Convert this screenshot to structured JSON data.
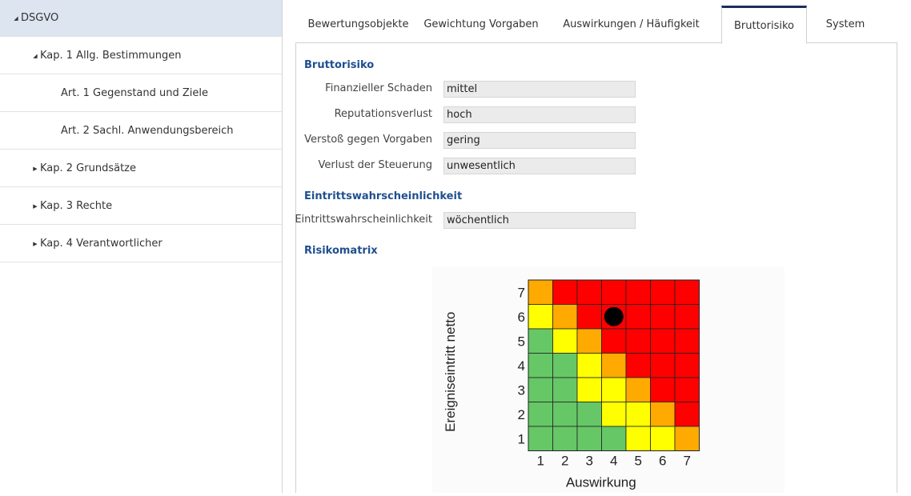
{
  "sidebar": {
    "items": [
      {
        "label": "DSGVO",
        "arrow": "◢",
        "selected": true
      },
      {
        "label": "Kap. 1 Allg. Bestimmungen",
        "arrow": "◢"
      },
      {
        "label": "Art. 1 Gegenstand und Ziele",
        "arrow": ""
      },
      {
        "label": "Art. 2 Sachl. Anwendungsbereich",
        "arrow": ""
      },
      {
        "label": "Kap. 2 Grundsätze",
        "arrow": "▶"
      },
      {
        "label": "Kap. 3 Rechte",
        "arrow": "▶"
      },
      {
        "label": "Kap. 4 Verantwortlicher",
        "arrow": "▶"
      }
    ]
  },
  "tabs": [
    {
      "label": "Bewertungsobjekte"
    },
    {
      "label": "Gewichtung Vorgaben"
    },
    {
      "label": "Auswirkungen / Häufigkeit"
    },
    {
      "label": "Bruttorisiko",
      "active": true
    },
    {
      "label": "System"
    }
  ],
  "bruttorisiko": {
    "title": "Bruttorisiko",
    "fields": [
      {
        "label": "Finanzieller Schaden",
        "value": "mittel"
      },
      {
        "label": "Reputationsverlust",
        "value": "hoch"
      },
      {
        "label": "Verstoß gegen Vorgaben",
        "value": "gering"
      },
      {
        "label": "Verlust der Steuerung",
        "value": "unwesentlich"
      }
    ]
  },
  "eintritt": {
    "title": "Eintrittswahrscheinlichkeit",
    "fields": [
      {
        "label": "Eintrittswahrscheinlichkeit",
        "value": "wöchentlich"
      }
    ]
  },
  "risikomatrix": {
    "title": "Risikomatrix"
  },
  "colors": {
    "green": "#66c766",
    "yellow": "#ffff00",
    "orange": "#ffaa00",
    "red": "#ff0000",
    "accent": "#1f4f8f"
  },
  "chart_data": {
    "type": "heatmap",
    "xlabel": "Auswirkung",
    "ylabel": "Ereigniseintritt netto",
    "x_ticks": [
      "1",
      "2",
      "3",
      "4",
      "5",
      "6",
      "7"
    ],
    "y_ticks": [
      "1",
      "2",
      "3",
      "4",
      "5",
      "6",
      "7"
    ],
    "rows_top_to_bottom": [
      [
        "orange",
        "red",
        "red",
        "red",
        "red",
        "red",
        "red"
      ],
      [
        "yellow",
        "orange",
        "red",
        "red",
        "red",
        "red",
        "red"
      ],
      [
        "green",
        "yellow",
        "orange",
        "red",
        "red",
        "red",
        "red"
      ],
      [
        "green",
        "green",
        "yellow",
        "orange",
        "red",
        "red",
        "red"
      ],
      [
        "green",
        "green",
        "yellow",
        "yellow",
        "orange",
        "red",
        "red"
      ],
      [
        "green",
        "green",
        "green",
        "yellow",
        "yellow",
        "orange",
        "red"
      ],
      [
        "green",
        "green",
        "green",
        "green",
        "yellow",
        "yellow",
        "orange"
      ]
    ],
    "marker": {
      "x": 4,
      "y": 6
    }
  }
}
